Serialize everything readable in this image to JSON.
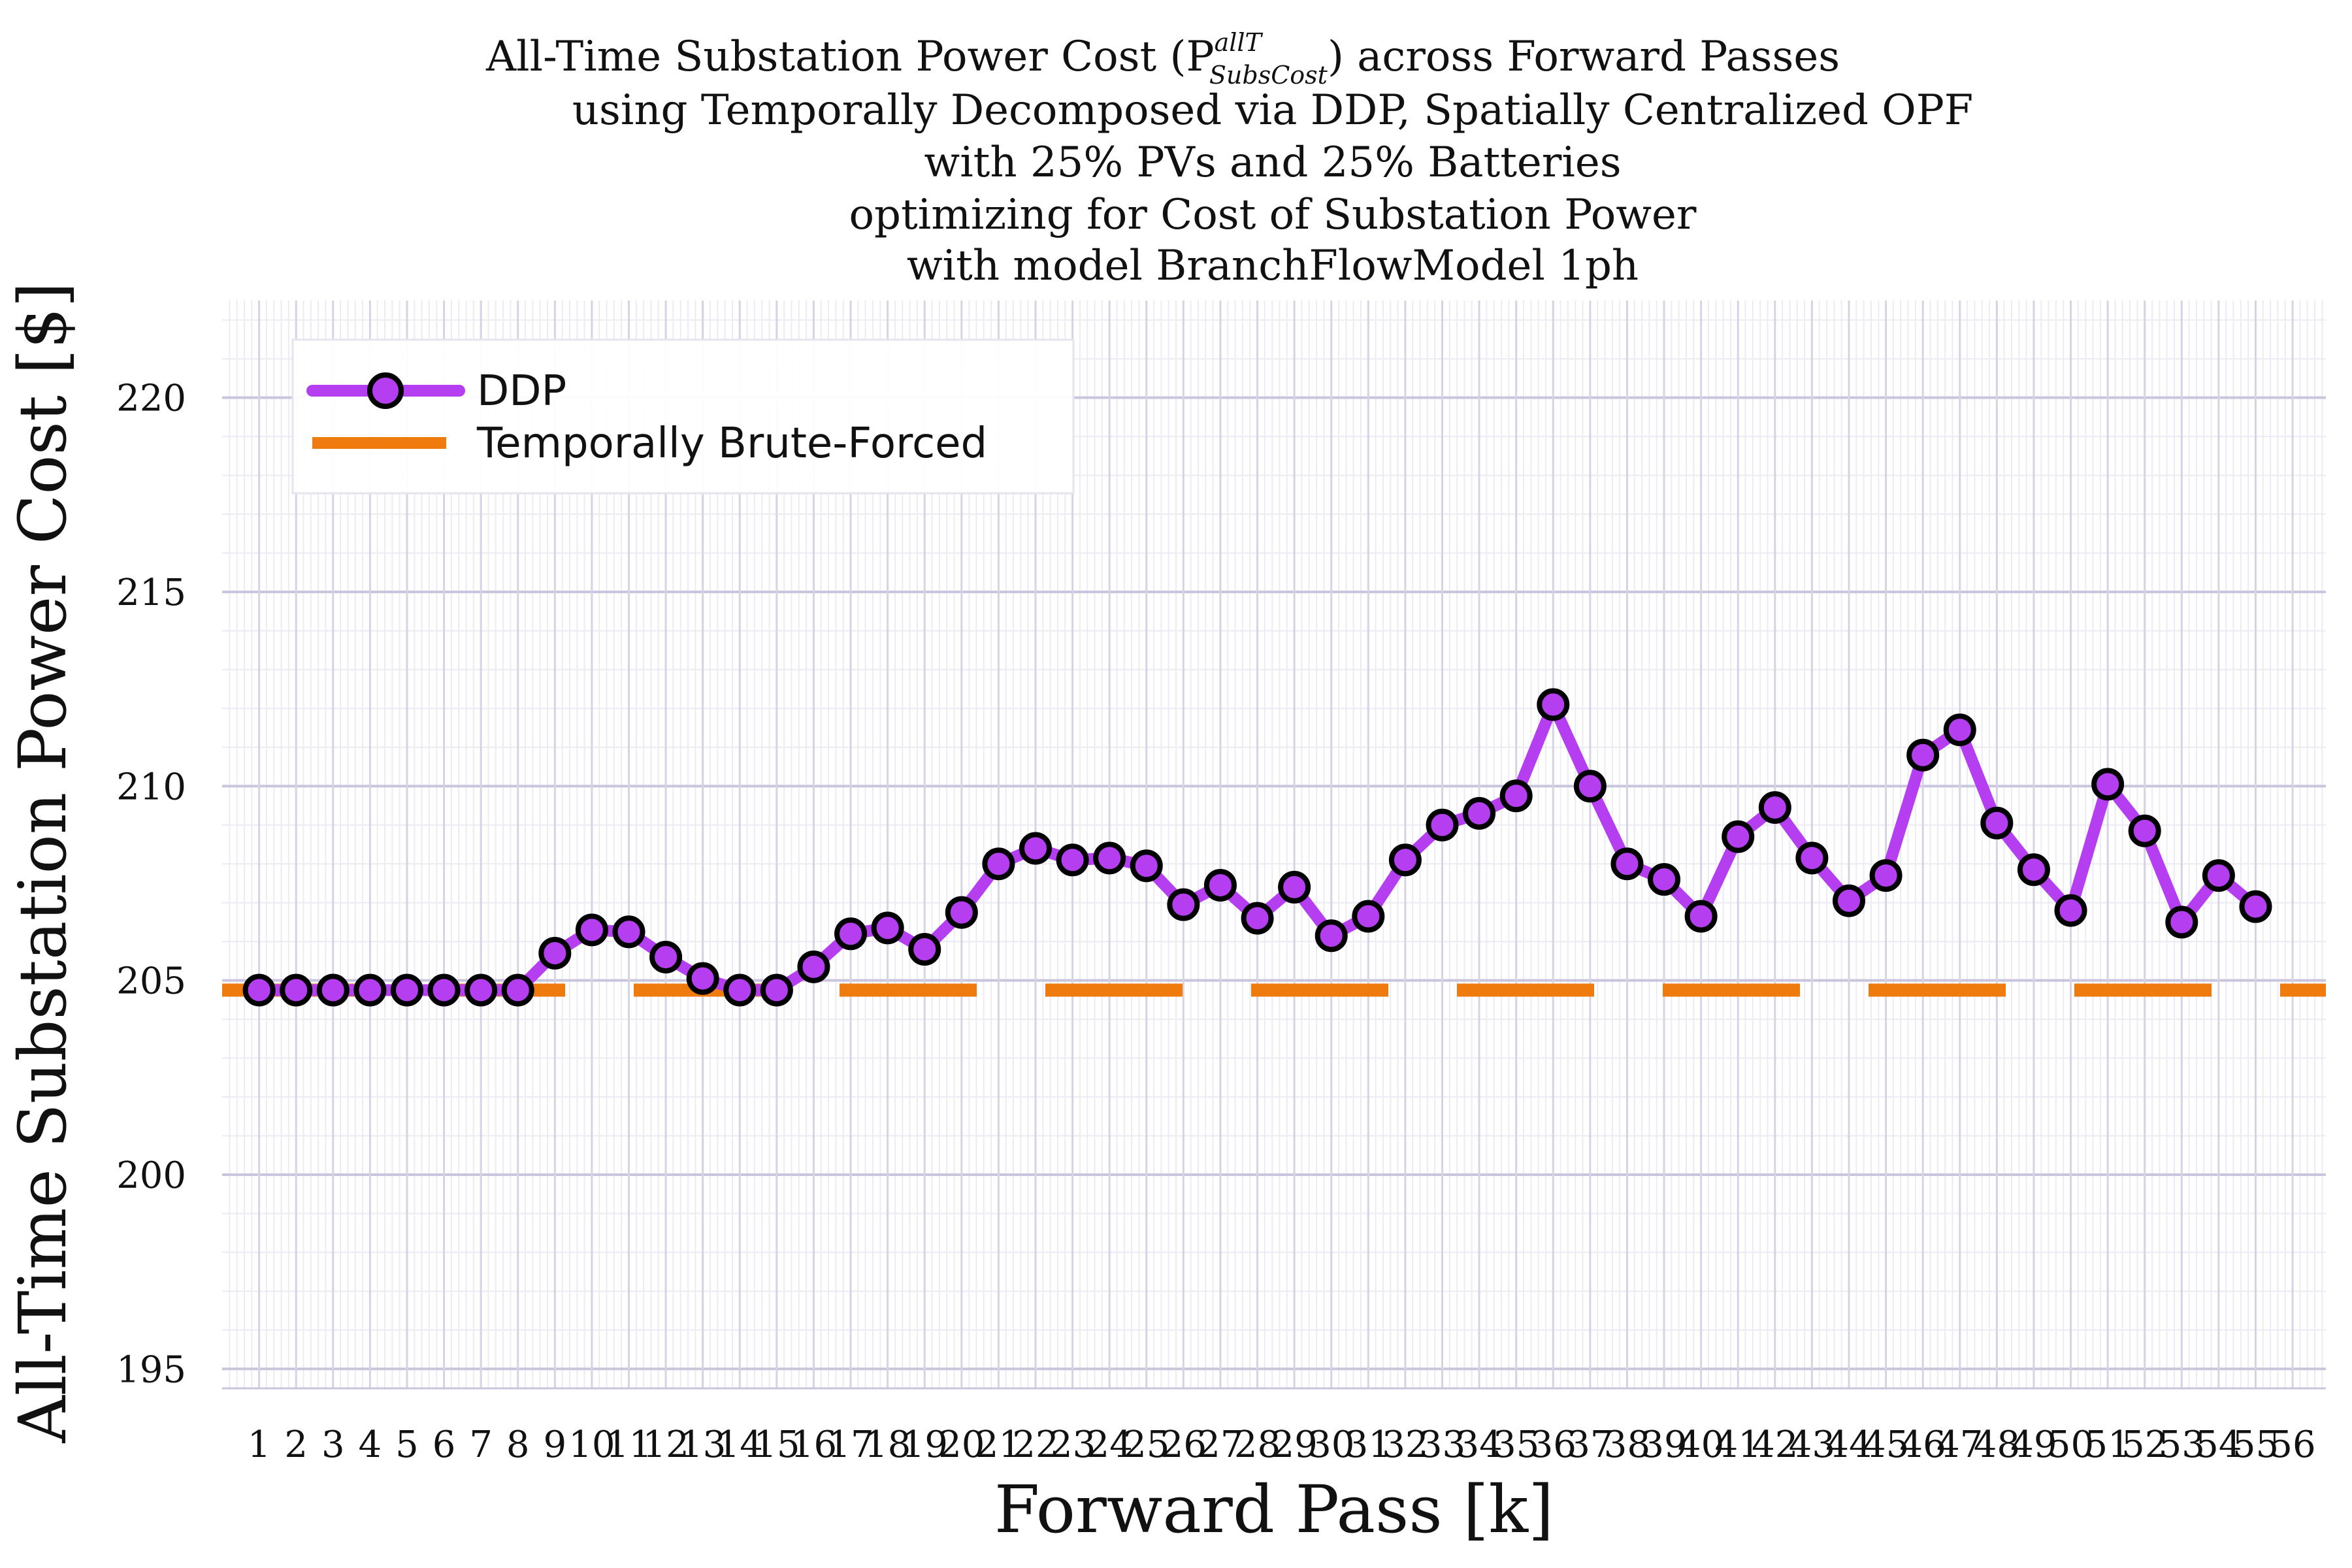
{
  "chart_data": {
    "type": "line",
    "title_lines": [
      "All-Time Substation Power Cost (P",
      "using Temporally Decomposed via DDP, Spatially Centralized OPF",
      "with 25% PVs and 25% Batteries",
      "optimizing for Cost of Substation Power",
      "with model BranchFlowModel 1ph"
    ],
    "title_symbol": {
      "superscript": "allT",
      "subscript": "SubsCost",
      "suffix": ") across Forward Passes"
    },
    "xlabel": "Forward Pass [k]",
    "ylabel": "All-Time Substation Power Cost [$]",
    "xlim": [
      0,
      56.9
    ],
    "ylim": [
      194.5,
      222.5
    ],
    "yticks": [
      195,
      200,
      205,
      210,
      215,
      220
    ],
    "xticks": [
      1,
      2,
      3,
      4,
      5,
      6,
      7,
      8,
      9,
      10,
      11,
      12,
      13,
      14,
      15,
      16,
      17,
      18,
      19,
      20,
      21,
      22,
      23,
      24,
      25,
      26,
      27,
      28,
      29,
      30,
      31,
      32,
      33,
      34,
      35,
      36,
      37,
      38,
      39,
      40,
      41,
      42,
      43,
      44,
      45,
      46,
      47,
      48,
      49,
      50,
      51,
      52,
      53,
      54,
      55,
      56
    ],
    "grid": true,
    "legend_position": "top-left",
    "series": [
      {
        "name": "DDP",
        "color": "#b53ff0",
        "marker": "circle",
        "x": [
          1,
          2,
          3,
          4,
          5,
          6,
          7,
          8,
          9,
          10,
          11,
          12,
          13,
          14,
          15,
          16,
          17,
          18,
          19,
          20,
          21,
          22,
          23,
          24,
          25,
          26,
          27,
          28,
          29,
          30,
          31,
          32,
          33,
          34,
          35,
          36,
          37,
          38,
          39,
          40,
          41,
          42,
          43,
          44,
          45,
          46,
          47,
          48,
          49,
          50,
          51,
          52,
          53,
          54,
          55
        ],
        "values": [
          204.75,
          204.75,
          204.75,
          204.75,
          204.75,
          204.75,
          204.75,
          204.75,
          205.7,
          206.3,
          206.25,
          205.6,
          205.05,
          204.75,
          204.75,
          205.35,
          206.2,
          206.35,
          205.8,
          206.75,
          208.0,
          208.4,
          208.1,
          208.15,
          207.95,
          206.95,
          207.45,
          206.6,
          207.4,
          206.15,
          206.65,
          208.1,
          209.0,
          209.3,
          209.75,
          212.1,
          210.0,
          208.0,
          207.6,
          206.65,
          208.7,
          209.45,
          208.15,
          207.05,
          207.7,
          210.8,
          211.45,
          209.05,
          207.85,
          206.8,
          210.05,
          208.85,
          206.5,
          207.7,
          206.9
        ]
      },
      {
        "name": "Temporally Brute-Forced",
        "color": "#ef7a0d",
        "style": "dashed",
        "constant": 204.75
      }
    ]
  }
}
